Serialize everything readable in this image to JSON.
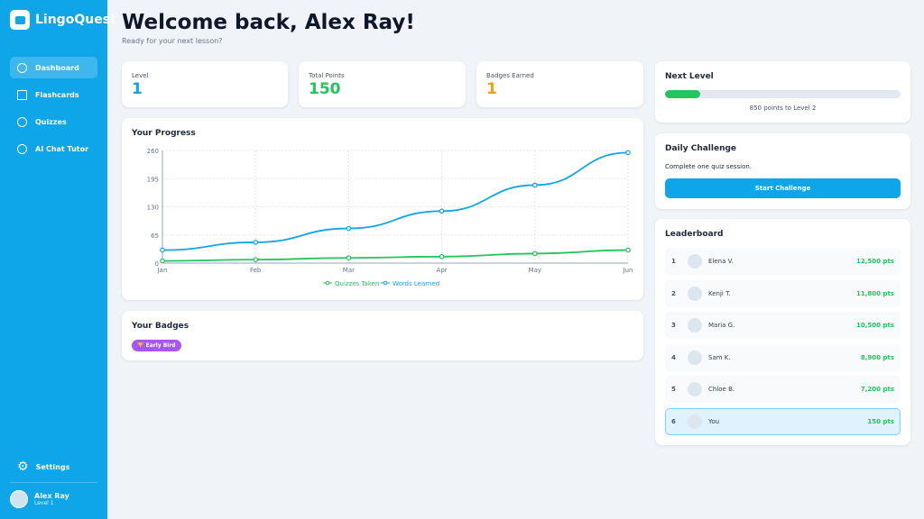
{
  "app": {
    "name": "LingoQuest"
  },
  "sidebar": {
    "items": [
      {
        "label": "Dashboard",
        "icon": "chart-pie-icon"
      },
      {
        "label": "Flashcards",
        "icon": "book-icon"
      },
      {
        "label": "Quizzes",
        "icon": "question-icon"
      },
      {
        "label": "AI Chat Tutor",
        "icon": "chat-icon"
      }
    ],
    "settings": "Settings",
    "user": {
      "name": "Alex Ray",
      "level": "Level 1"
    }
  },
  "header": {
    "title": "Welcome back, Alex Ray!",
    "subtitle": "Ready for your next lesson?"
  },
  "stats": [
    {
      "label": "Level",
      "value": "1",
      "color": "#0ea5e9"
    },
    {
      "label": "Total Points",
      "value": "150",
      "color": "#22c55e"
    },
    {
      "label": "Badges Earned",
      "value": "1",
      "color": "#f59e0b"
    }
  ],
  "progress_card": {
    "title": "Your Progress"
  },
  "badges": {
    "title": "Your Badges",
    "items": [
      "🏆 Early Bird"
    ]
  },
  "next_level": {
    "title": "Next Level",
    "progress_percent": 15,
    "text": "850 points to Level 2"
  },
  "daily": {
    "title": "Daily Challenge",
    "text": "Complete one quiz session.",
    "button": "Start Challenge"
  },
  "leaderboard": {
    "title": "Leaderboard",
    "rows": [
      {
        "rank": "1",
        "name": "Elena V.",
        "pts": "12,500 pts"
      },
      {
        "rank": "2",
        "name": "Kenji T.",
        "pts": "11,800 pts"
      },
      {
        "rank": "3",
        "name": "Maria G.",
        "pts": "10,500 pts"
      },
      {
        "rank": "4",
        "name": "Sam K.",
        "pts": "8,900 pts"
      },
      {
        "rank": "5",
        "name": "Chloe B.",
        "pts": "7,200 pts"
      },
      {
        "rank": "6",
        "name": "You",
        "pts": "150 pts"
      }
    ]
  },
  "chart_data": {
    "type": "line",
    "categories": [
      "Jan",
      "Feb",
      "Mar",
      "Apr",
      "May",
      "Jun"
    ],
    "series": [
      {
        "name": "Quizzes Taken",
        "color": "#22c55e",
        "values": [
          5,
          8,
          12,
          15,
          22,
          30
        ]
      },
      {
        "name": "Words Learned",
        "color": "#0ea5e9",
        "values": [
          30,
          48,
          80,
          120,
          180,
          255
        ]
      }
    ],
    "yticks": [
      0,
      65,
      130,
      195,
      260
    ],
    "ylim": [
      0,
      260
    ],
    "grid": true,
    "legend": "bottom"
  }
}
